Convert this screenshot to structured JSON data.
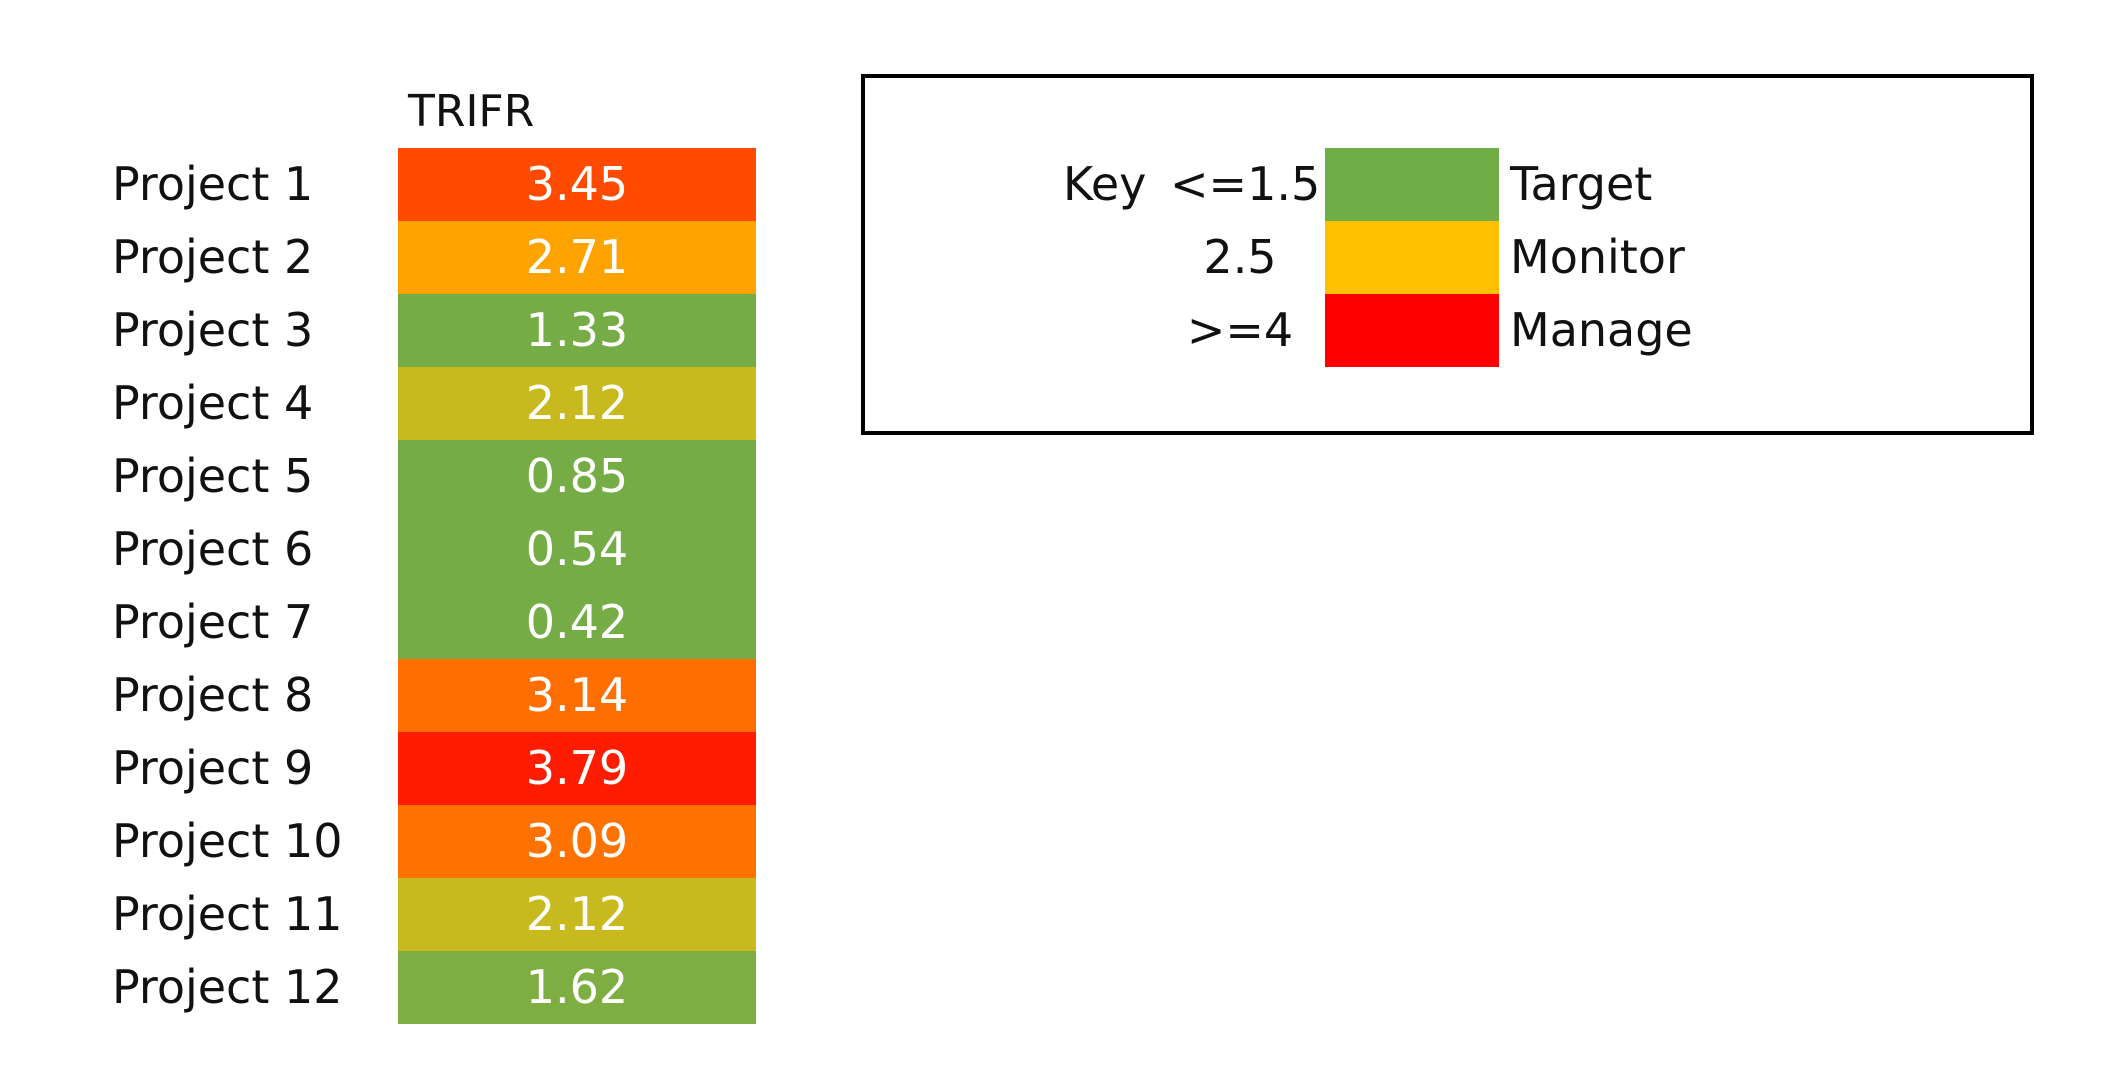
{
  "chart_data": {
    "type": "heatmap",
    "column_header": "TRIFR",
    "categories": [
      "Project 1",
      "Project 2",
      "Project 3",
      "Project 4",
      "Project 5",
      "Project 6",
      "Project 7",
      "Project 8",
      "Project 9",
      "Project 10",
      "Project 11",
      "Project 12"
    ],
    "values": [
      3.45,
      2.71,
      1.33,
      2.12,
      0.85,
      0.54,
      0.42,
      3.14,
      3.79,
      3.09,
      2.12,
      1.62
    ],
    "value_labels": [
      "3.45",
      "2.71",
      "1.33",
      "2.12",
      "0.85",
      "0.54",
      "0.42",
      "3.14",
      "3.79",
      "3.09",
      "2.12",
      "1.62"
    ],
    "cell_colors": [
      "#ff4a00",
      "#ffa300",
      "#75ac45",
      "#c8b91e",
      "#75ac45",
      "#75ac45",
      "#75ac45",
      "#ff6e00",
      "#ff1c00",
      "#ff7200",
      "#c8b91e",
      "#7eae41"
    ],
    "color_scale": {
      "low": "#70ad47",
      "mid": "#ffc000",
      "high": "#ff0000"
    }
  },
  "key": {
    "title": "Key",
    "items": [
      {
        "threshold": "<=1.5",
        "label": "Target",
        "color": "#70ad47"
      },
      {
        "threshold": "2.5",
        "label": "Monitor",
        "color": "#ffc000"
      },
      {
        "threshold": ">=4",
        "label": "Manage",
        "color": "#ff0000"
      }
    ]
  }
}
